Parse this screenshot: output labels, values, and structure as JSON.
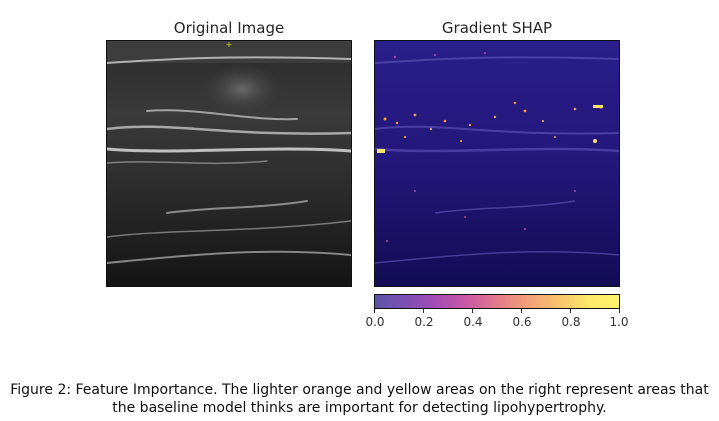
{
  "figure": {
    "left_title": "Original Image",
    "right_title": "Gradient SHAP",
    "colorbar": {
      "ticks": [
        "0.0",
        "0.2",
        "0.4",
        "0.6",
        "0.8",
        "1.0"
      ],
      "colors": [
        "#5a55a8",
        "#a54db5",
        "#e27a8c",
        "#f8c16c",
        "#fff36b"
      ]
    },
    "caption": "Figure 2: Feature Importance. The lighter orange and yellow areas on the right represent areas that the baseline model thinks are important for detecting lipohypertrophy."
  }
}
